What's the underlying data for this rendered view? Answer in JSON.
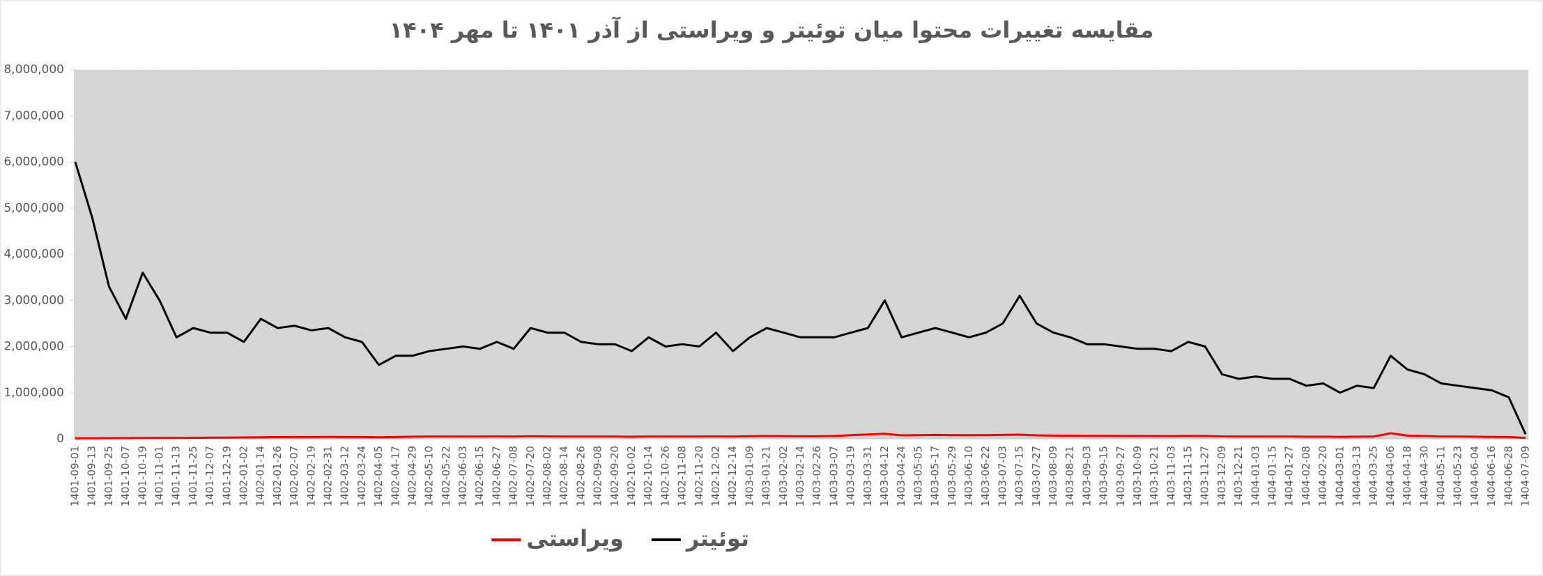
{
  "chart_data": {
    "type": "line",
    "title": "مقایسه تغییرات محتوا میان توئیتر و ویراستی از آذر ۱۴۰۱ تا مهر ۱۴۰۴",
    "categories": [
      "1401-09-01",
      "1401-09-13",
      "1401-09-25",
      "1401-10-07",
      "1401-10-19",
      "1401-11-01",
      "1401-11-13",
      "1401-11-25",
      "1401-12-07",
      "1401-12-19",
      "1402-01-02",
      "1402-01-14",
      "1402-01-26",
      "1402-02-07",
      "1402-02-19",
      "1402-02-31",
      "1402-03-12",
      "1402-03-24",
      "1402-04-05",
      "1402-04-17",
      "1402-04-29",
      "1402-05-10",
      "1402-05-22",
      "1402-06-03",
      "1402-06-15",
      "1402-06-27",
      "1402-07-08",
      "1402-07-20",
      "1402-08-02",
      "1402-08-14",
      "1402-08-26",
      "1402-09-08",
      "1402-09-20",
      "1402-10-02",
      "1402-10-14",
      "1402-10-26",
      "1402-11-08",
      "1402-11-20",
      "1402-12-02",
      "1402-12-14",
      "1403-01-09",
      "1403-01-21",
      "1403-02-02",
      "1403-02-14",
      "1403-02-26",
      "1403-03-07",
      "1403-03-19",
      "1403-03-31",
      "1403-04-12",
      "1403-04-24",
      "1403-05-05",
      "1403-05-17",
      "1403-05-29",
      "1403-06-10",
      "1403-06-22",
      "1403-07-03",
      "1403-07-15",
      "1403-07-27",
      "1403-08-09",
      "1403-08-21",
      "1403-09-03",
      "1403-09-15",
      "1403-09-27",
      "1403-10-09",
      "1403-10-21",
      "1403-11-03",
      "1403-11-15",
      "1403-11-27",
      "1403-12-09",
      "1403-12-21",
      "1404-01-03",
      "1404-01-15",
      "1404-01-27",
      "1404-02-08",
      "1404-02-20",
      "1404-03-01",
      "1404-03-13",
      "1404-03-25",
      "1404-04-06",
      "1404-04-18",
      "1404-04-30",
      "1404-05-11",
      "1404-05-23",
      "1404-06-04",
      "1404-06-16",
      "1404-06-28",
      "1404-07-09"
    ],
    "series": [
      {
        "name": "توئیتر",
        "color": "#000000",
        "values": [
          6000000,
          4800000,
          3300000,
          2600000,
          3600000,
          3000000,
          2200000,
          2400000,
          2300000,
          2300000,
          2100000,
          2600000,
          2400000,
          2450000,
          2350000,
          2400000,
          2200000,
          2100000,
          1600000,
          1800000,
          1800000,
          1900000,
          1950000,
          2000000,
          1950000,
          2100000,
          1950000,
          2400000,
          2300000,
          2300000,
          2100000,
          2050000,
          2050000,
          1900000,
          2200000,
          2000000,
          2050000,
          2000000,
          2300000,
          1900000,
          2200000,
          2400000,
          2300000,
          2200000,
          2200000,
          2200000,
          2300000,
          2400000,
          3000000,
          2200000,
          2300000,
          2400000,
          2300000,
          2200000,
          2300000,
          2500000,
          3100000,
          2500000,
          2300000,
          2200000,
          2050000,
          2050000,
          2000000,
          1950000,
          1950000,
          1900000,
          2100000,
          2000000,
          1400000,
          1300000,
          1350000,
          1300000,
          1300000,
          1150000,
          1200000,
          1000000,
          1150000,
          1100000,
          1800000,
          1500000,
          1400000,
          1200000,
          1150000,
          1100000,
          1050000,
          900000,
          100000
        ]
      },
      {
        "name": "ویراستی",
        "color": "#ff0000",
        "values": [
          10000,
          12000,
          14000,
          15000,
          16000,
          18000,
          20000,
          22000,
          24000,
          26000,
          30000,
          35000,
          38000,
          40000,
          40000,
          42000,
          40000,
          40000,
          35000,
          40000,
          45000,
          50000,
          50000,
          50000,
          48000,
          52000,
          50000,
          55000,
          52000,
          50000,
          48000,
          48000,
          48000,
          45000,
          50000,
          48000,
          50000,
          50000,
          52000,
          48000,
          55000,
          60000,
          58000,
          55000,
          55000,
          60000,
          80000,
          95000,
          110000,
          75000,
          80000,
          85000,
          80000,
          78000,
          80000,
          85000,
          90000,
          75000,
          70000,
          68000,
          65000,
          65000,
          62000,
          60000,
          60000,
          58000,
          62000,
          60000,
          52000,
          50000,
          50000,
          48000,
          48000,
          45000,
          45000,
          42000,
          45000,
          50000,
          120000,
          70000,
          60000,
          50000,
          48000,
          45000,
          42000,
          40000,
          20000
        ]
      }
    ],
    "ylim": [
      0,
      8000000
    ],
    "yticks": [
      0,
      {
        "value": 1000000,
        "label": "1,000,000"
      },
      {
        "value": 2000000,
        "label": "2,000,000"
      },
      {
        "value": 3000000,
        "label": "3,000,000"
      },
      {
        "value": 4000000,
        "label": "4,000,000"
      },
      {
        "value": 5000000,
        "label": "5,000,000"
      },
      {
        "value": 6000000,
        "label": "6,000,000"
      },
      {
        "value": 7000000,
        "label": "7,000,000"
      },
      {
        "value": 8000000,
        "label": "8,000,000"
      }
    ],
    "grid": false,
    "legend": "bottom"
  }
}
